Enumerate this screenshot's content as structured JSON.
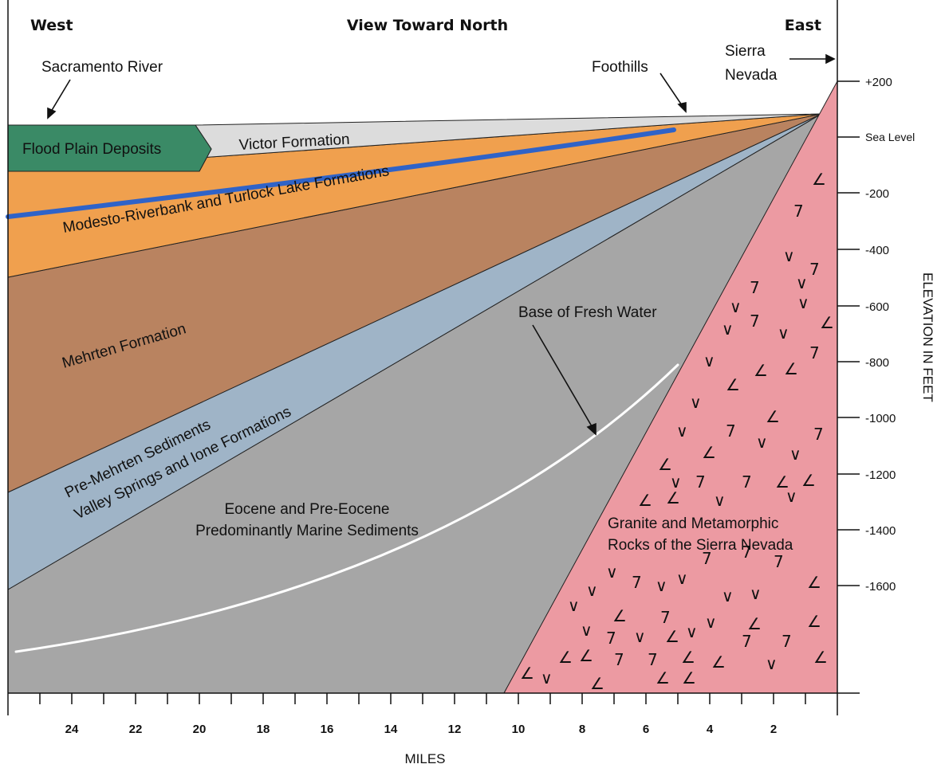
{
  "header": {
    "west": "West",
    "center": "View Toward North",
    "east": "East"
  },
  "callouts": {
    "sacramento_river": "Sacramento River",
    "foothills": "Foothills",
    "sierra_line1": "Sierra",
    "sierra_line2": "Nevada",
    "base_fresh_water": "Base of Fresh Water"
  },
  "units": {
    "flood_plain": "Flood Plain Deposits",
    "victor": "Victor Formation",
    "modesto": "Modesto-Riverbank and Turlock Lake Formations",
    "mehrten": "Mehrten Formation",
    "pre_mehrten_line1": "Pre-Mehrten Sediments",
    "pre_mehrten_line2": "Valley Springs and Ione Formations",
    "eocene_line1": "Eocene and Pre-Eocene",
    "eocene_line2": "Predominantly Marine Sediments",
    "granite_line1": "Granite and Metamorphic",
    "granite_line2": "Rocks of the Sierra Nevada"
  },
  "y_axis": {
    "title": "ELEVATION IN FEET",
    "ticks": [
      "+200",
      "Sea Level",
      "-200",
      "-400",
      "-600",
      "-800",
      "-1000",
      "-1200",
      "-1400",
      "-1600"
    ]
  },
  "x_axis": {
    "title": "MILES",
    "ticks": [
      "24",
      "22",
      "20",
      "18",
      "16",
      "14",
      "12",
      "10",
      "8",
      "6",
      "4",
      "2"
    ]
  },
  "colors": {
    "flood_plain": "#3a8a66",
    "victor": "#dcdcdc",
    "modesto": "#f0a04e",
    "mehrten": "#b98360",
    "pre_mehrten": "#9fb4c7",
    "eocene": "#a6a6a6",
    "granite": "#ec9aa2",
    "water_table": "#2f63c8",
    "fresh_water_base": "#ffffff"
  }
}
